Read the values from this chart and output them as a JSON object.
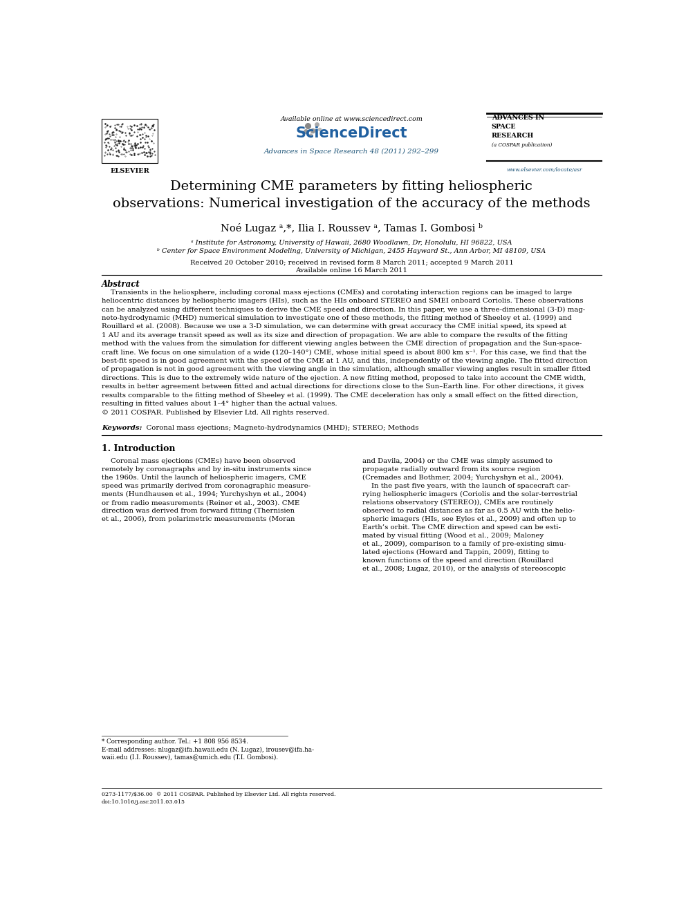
{
  "bg_color": "#ffffff",
  "header": {
    "available_online": "Available online at www.sciencedirect.com",
    "journal_line": "Advances in Space Research 48 (2011) 292–299",
    "journal_line_color": "#1a5276",
    "sciencedirect_color": "#2060a0",
    "asr_url": "www.elsevier.com/locate/asr",
    "elsevier_text": "ELSEVIER"
  },
  "title": "Determining CME parameters by fitting heliospheric\nobservations: Numerical investigation of the accuracy of the methods",
  "authors_line": "Noé Lugaz ᵃ,*, Ilia I. Roussev ᵃ, Tamas I. Gombosi ᵇ",
  "affil_a": "ᵃ Institute for Astronomy, University of Hawaii, 2680 Woodlawn, Dr, Honolulu, HI 96822, USA",
  "affil_b": "ᵇ Center for Space Environment Modeling, University of Michigan, 2455 Hayward St., Ann Arbor, MI 48109, USA",
  "received": "Received 20 October 2010; received in revised form 8 March 2011; accepted 9 March 2011",
  "available": "Available online 16 March 2011",
  "abstract_heading": "Abstract",
  "abstract_lines": [
    "    Transients in the heliosphere, including coronal mass ejections (CMEs) and corotating interaction regions can be imaged to large",
    "heliocentric distances by heliospheric imagers (HIs), such as the HIs onboard STEREO and SMEI onboard Coriolis. These observations",
    "can be analyzed using different techniques to derive the CME speed and direction. In this paper, we use a three-dimensional (3-D) mag-",
    "neto-hydrodynamic (MHD) numerical simulation to investigate one of these methods, the fitting method of Sheeley et al. (1999) and",
    "Rouillard et al. (2008). Because we use a 3-D simulation, we can determine with great accuracy the CME initial speed, its speed at",
    "1 AU and its average transit speed as well as its size and direction of propagation. We are able to compare the results of the fitting",
    "method with the values from the simulation for different viewing angles between the CME direction of propagation and the Sun-space-",
    "craft line. We focus on one simulation of a wide (120–140°) CME, whose initial speed is about 800 km s⁻¹. For this case, we find that the",
    "best-fit speed is in good agreement with the speed of the CME at 1 AU, and this, independently of the viewing angle. The fitted direction",
    "of propagation is not in good agreement with the viewing angle in the simulation, although smaller viewing angles result in smaller fitted",
    "directions. This is due to the extremely wide nature of the ejection. A new fitting method, proposed to take into account the CME width,",
    "results in better agreement between fitted and actual directions for directions close to the Sun–Earth line. For other directions, it gives",
    "results comparable to the fitting method of Sheeley et al. (1999). The CME deceleration has only a small effect on the fitted direction,",
    "resulting in fitted values about 1–4° higher than the actual values.",
    "© 2011 COSPAR. Published by Elsevier Ltd. All rights reserved."
  ],
  "keywords_label": "Keywords:",
  "keywords_text": "  Coronal mass ejections; Magneto-hydrodynamics (MHD); STEREO; Methods",
  "section1_heading": "1. Introduction",
  "section1_left_lines": [
    "    Coronal mass ejections (CMEs) have been observed",
    "remotely by coronagraphs and by in-situ instruments since",
    "the 1960s. Until the launch of heliospheric imagers, CME",
    "speed was primarily derived from coronagraphic measure-",
    "ments (Hundhausen et al., 1994; Yurchyshyn et al., 2004)",
    "or from radio measurements (Reiner et al., 2003). CME",
    "direction was derived from forward fitting (Thernisien",
    "et al., 2006), from polarimetric measurements (Moran"
  ],
  "section1_right_lines": [
    "and Davila, 2004) or the CME was simply assumed to",
    "propagate radially outward from its source region",
    "(Cremades and Bothmer, 2004; Yurchyshyn et al., 2004).",
    "    In the past five years, with the launch of spacecraft car-",
    "rying heliospheric imagers (Coriolis and the solar-terrestrial",
    "relations observatory (STEREO)), CMEs are routinely",
    "observed to radial distances as far as 0.5 AU with the helio-",
    "spheric imagers (HIs, see Eyles et al., 2009) and often up to",
    "Earth’s orbit. The CME direction and speed can be esti-",
    "mated by visual fitting (Wood et al., 2009; Maloney",
    "et al., 2009), comparison to a family of pre-existing simu-",
    "lated ejections (Howard and Tappin, 2009), fitting to",
    "known functions of the speed and direction (Rouillard",
    "et al., 2008; Lugaz, 2010), or the analysis of stereoscopic"
  ],
  "footnote_star": "* Corresponding author. Tel.: +1 808 956 8534.",
  "footnote_email1": "E-mail addresses: nlugaz@ifa.hawaii.edu (N. Lugaz), irousev@ifa.ha-",
  "footnote_email2": "waii.edu (I.I. Roussev), tamas@umich.edu (T.I. Gombosi).",
  "bottom_line1": "0273-1177/$36.00  © 2011 COSPAR. Published by Elsevier Ltd. All rights reserved.",
  "bottom_line2": "doi:10.1016/j.asr.2011.03.015"
}
